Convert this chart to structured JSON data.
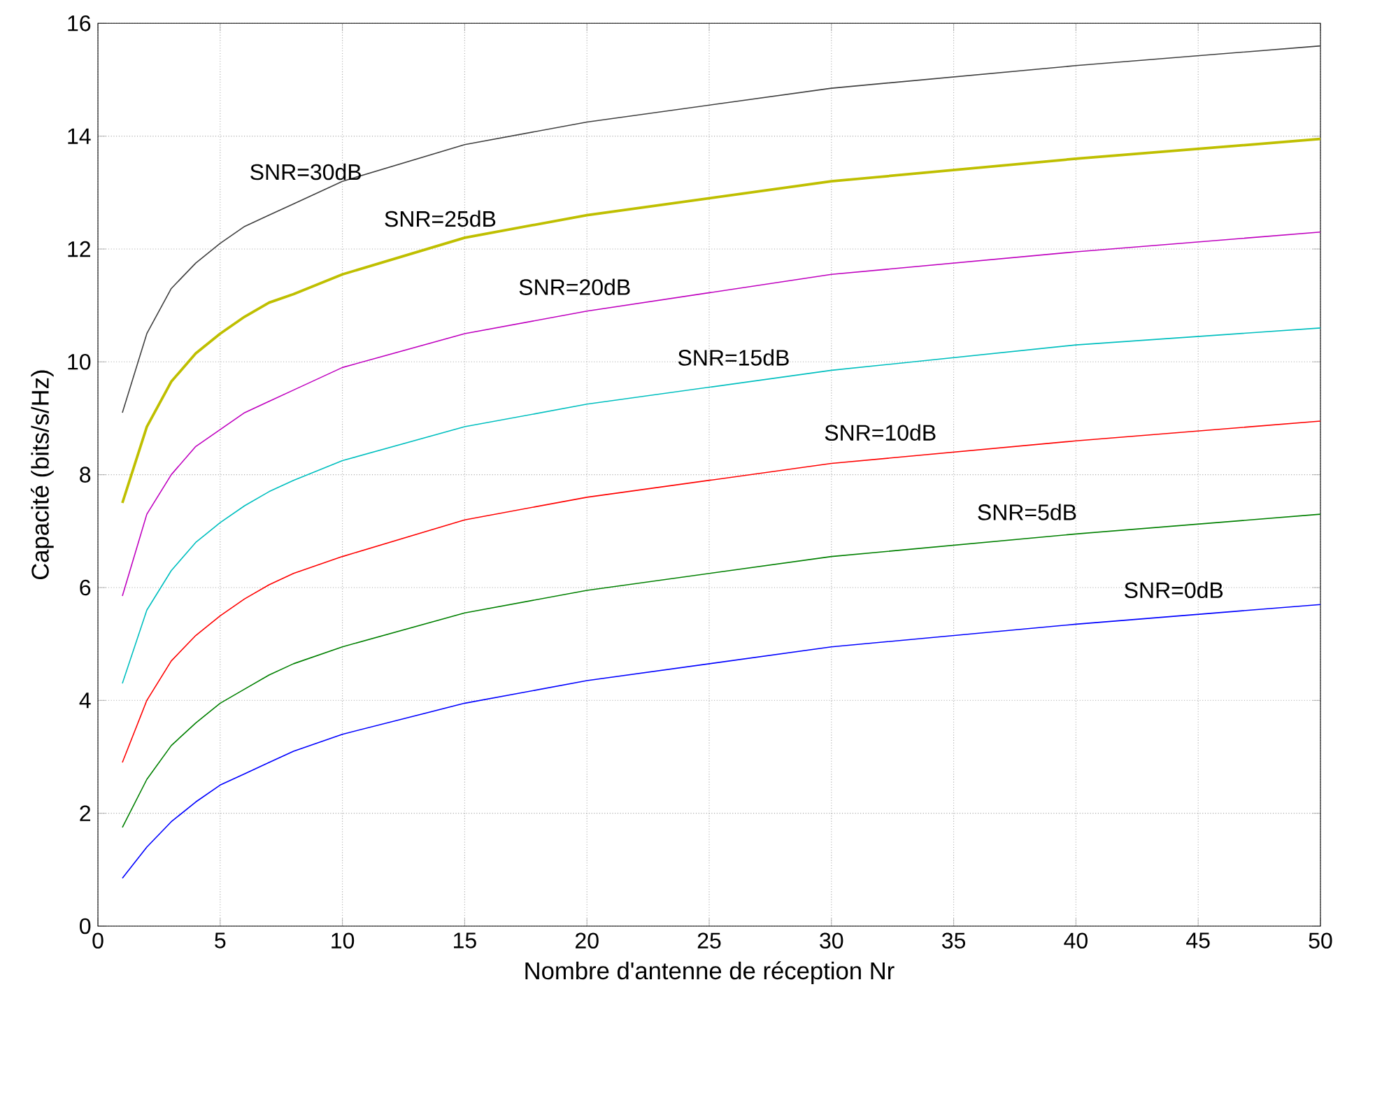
{
  "chart_data": {
    "type": "line",
    "xlabel": "Nombre d'antenne de réception Nr",
    "ylabel": "Capacité (bits/s/Hz)",
    "xlim": [
      0,
      50
    ],
    "ylim": [
      0,
      16
    ],
    "xticks": [
      0,
      5,
      10,
      15,
      20,
      25,
      30,
      35,
      40,
      45,
      50
    ],
    "yticks": [
      0,
      2,
      4,
      6,
      8,
      10,
      12,
      14,
      16
    ],
    "grid": true,
    "legend": false,
    "marker": "none",
    "line_style": "solid",
    "x": [
      1,
      2,
      3,
      4,
      5,
      6,
      7,
      8,
      10,
      15,
      20,
      30,
      40,
      50
    ],
    "series": [
      {
        "name": "SNR=0dB",
        "color": "#0000ff",
        "values": [
          0.85,
          1.4,
          1.85,
          2.2,
          2.5,
          2.7,
          2.9,
          3.1,
          3.4,
          3.95,
          4.35,
          4.95,
          5.35,
          5.7
        ]
      },
      {
        "name": "SNR=5dB",
        "color": "#008000",
        "values": [
          1.75,
          2.6,
          3.2,
          3.6,
          3.95,
          4.2,
          4.45,
          4.65,
          4.95,
          5.55,
          5.95,
          6.55,
          6.95,
          7.3
        ]
      },
      {
        "name": "SNR=10dB",
        "color": "#ff0000",
        "values": [
          2.9,
          4.0,
          4.7,
          5.15,
          5.5,
          5.8,
          6.05,
          6.25,
          6.55,
          7.2,
          7.6,
          8.2,
          8.6,
          8.95
        ]
      },
      {
        "name": "SNR=15dB",
        "color": "#00bfbf",
        "values": [
          4.3,
          5.6,
          6.3,
          6.8,
          7.15,
          7.45,
          7.7,
          7.9,
          8.25,
          8.85,
          9.25,
          9.85,
          10.3,
          10.6
        ]
      },
      {
        "name": "SNR=20dB",
        "color": "#bf00bf",
        "values": [
          5.85,
          7.3,
          8.0,
          8.5,
          8.8,
          9.1,
          9.3,
          9.5,
          9.9,
          10.5,
          10.9,
          11.55,
          11.95,
          12.3
        ]
      },
      {
        "name": "SNR=25dB",
        "color": "#bfbf00",
        "values": [
          7.5,
          8.85,
          9.65,
          10.15,
          10.5,
          10.8,
          11.05,
          11.2,
          11.55,
          12.2,
          12.6,
          13.2,
          13.6,
          13.95
        ]
      },
      {
        "name": "SNR=30dB",
        "color": "#404040",
        "values": [
          9.1,
          10.5,
          11.3,
          11.75,
          12.1,
          12.4,
          12.6,
          12.8,
          13.2,
          13.85,
          14.25,
          14.85,
          15.25,
          15.6
        ]
      }
    ]
  }
}
